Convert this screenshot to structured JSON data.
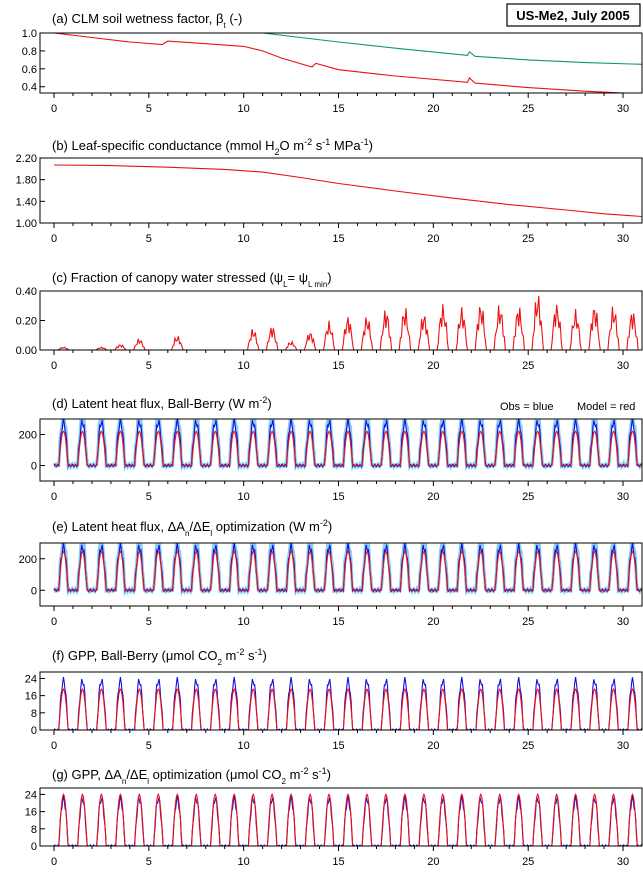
{
  "site_label": "US-Me2, July 2005",
  "legend": {
    "obs_label": "Obs = blue",
    "model_label": "Model = red",
    "obs_color": "#1010ee",
    "model_color": "#ee1010"
  },
  "colors": {
    "green": "#119955",
    "red": "#ee1010",
    "blue": "#1010dd",
    "lightblue": "#88ccee"
  },
  "x_ticks": [
    "0",
    "5",
    "10",
    "15",
    "20",
    "25",
    "30"
  ],
  "x_range": [
    0,
    31
  ],
  "chart_data": [
    {
      "id": "a",
      "type": "line",
      "title_pre": "(a) CLM soil wetness factor, β",
      "title_sub": "t",
      "title_post": " (-)",
      "yticks": [
        "1.0",
        "0.8",
        "0.6",
        "0.4"
      ],
      "ylim": [
        0.33,
        1.0
      ],
      "series": [
        {
          "color": "green",
          "x": [
            0,
            11,
            13,
            15,
            18,
            21.8,
            21.9,
            22.2,
            25,
            28,
            31
          ],
          "values": [
            1.0,
            1.0,
            0.95,
            0.9,
            0.83,
            0.75,
            0.79,
            0.74,
            0.7,
            0.67,
            0.65
          ]
        },
        {
          "color": "red",
          "x": [
            0,
            2,
            4,
            5.7,
            6,
            8,
            10,
            11,
            12,
            13.6,
            13.8,
            15,
            18,
            21.8,
            21.9,
            22.2,
            25,
            28,
            31
          ],
          "values": [
            1.0,
            0.95,
            0.9,
            0.87,
            0.91,
            0.88,
            0.85,
            0.8,
            0.72,
            0.62,
            0.66,
            0.59,
            0.52,
            0.45,
            0.5,
            0.44,
            0.39,
            0.35,
            0.32
          ]
        }
      ]
    },
    {
      "id": "b",
      "type": "line",
      "title_html": "(b) Leaf-specific conductance (mmol H<tspan baseline-shift='sub' font-size='9'>2</tspan>O m<tspan baseline-shift='super' font-size='9'>-2</tspan> s<tspan baseline-shift='super' font-size='9'>-1</tspan> MPa<tspan baseline-shift='super' font-size='9'>-1</tspan>)",
      "yticks": [
        "2.20",
        "1.80",
        "1.40",
        "1.00"
      ],
      "ylim": [
        1.0,
        2.2
      ],
      "series": [
        {
          "color": "red",
          "x": [
            0,
            3,
            6,
            9,
            11,
            13,
            15,
            18,
            21,
            24,
            27,
            29,
            31
          ],
          "values": [
            2.07,
            2.06,
            2.03,
            1.99,
            1.94,
            1.84,
            1.73,
            1.59,
            1.46,
            1.34,
            1.24,
            1.17,
            1.12
          ]
        }
      ]
    },
    {
      "id": "c",
      "type": "spikes",
      "title_html": "(c) Fraction of canopy water stressed (ψ<tspan baseline-shift='sub' font-size='8'>L</tspan>= ψ<tspan baseline-shift='sub' font-size='8'>L min</tspan>)",
      "yticks": [
        "0.40",
        "0.20",
        "0.00"
      ],
      "ylim": [
        0,
        0.4
      ],
      "series": [
        {
          "color": "red",
          "days": [
            1,
            3,
            4,
            5,
            7,
            11,
            12,
            13,
            14,
            15,
            16,
            17,
            18,
            19,
            20,
            21,
            22,
            23,
            24,
            25,
            26,
            27,
            28,
            29,
            30,
            31
          ],
          "peaks": [
            0.02,
            0.02,
            0.04,
            0.08,
            0.1,
            0.15,
            0.17,
            0.06,
            0.13,
            0.2,
            0.24,
            0.24,
            0.29,
            0.3,
            0.26,
            0.32,
            0.3,
            0.33,
            0.32,
            0.31,
            0.4,
            0.33,
            0.28,
            0.32,
            0.31,
            0.28
          ]
        }
      ]
    },
    {
      "id": "d",
      "type": "diurnal",
      "title_html": "(d) Latent heat flux, Ball-Berry (W m<tspan baseline-shift='super' font-size='9'>-2</tspan>)",
      "yticks": [
        "200",
        "0"
      ],
      "ylim": [
        -100,
        300
      ],
      "obs_peak": 280,
      "model_peak": 220,
      "night": 0,
      "band": true
    },
    {
      "id": "e",
      "type": "diurnal",
      "title_html": "(e) Latent heat flux, ΔA<tspan baseline-shift='sub' font-size='8'>n</tspan>/ΔE<tspan baseline-shift='sub' font-size='8'>l</tspan> optimization (W m<tspan baseline-shift='super' font-size='9'>-2</tspan>)",
      "yticks": [
        "200",
        "0"
      ],
      "ylim": [
        -100,
        300
      ],
      "obs_peak": 275,
      "model_peak": 245,
      "night": 0,
      "band": true
    },
    {
      "id": "f",
      "type": "diurnal",
      "title_html": "(f) GPP, Ball-Berry (μmol CO<tspan baseline-shift='sub' font-size='8'>2</tspan> m<tspan baseline-shift='super' font-size='9'>-2</tspan> s<tspan baseline-shift='super' font-size='9'>-1</tspan>)",
      "yticks": [
        "24",
        "16",
        "8",
        "0"
      ],
      "ylim": [
        0,
        27
      ],
      "obs_peak": 23,
      "model_peak": 19,
      "night": 0,
      "band": false
    },
    {
      "id": "g",
      "type": "diurnal",
      "title_html": "(g) GPP, ΔA<tspan baseline-shift='sub' font-size='8'>n</tspan>/ΔE<tspan baseline-shift='sub' font-size='8'>l</tspan> optimization (μmol CO<tspan baseline-shift='sub' font-size='8'>2</tspan> m<tspan baseline-shift='super' font-size='9'>-2</tspan> s<tspan baseline-shift='super' font-size='9'>-1</tspan>)",
      "yticks": [
        "24",
        "16",
        "8",
        "0"
      ],
      "ylim": [
        0,
        27
      ],
      "obs_peak": 22,
      "model_peak": 24,
      "night": 0,
      "band": false
    }
  ]
}
